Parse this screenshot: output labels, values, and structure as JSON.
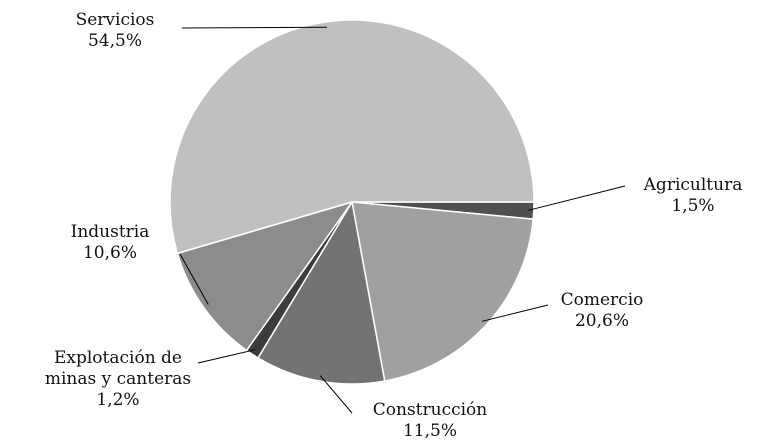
{
  "chart_data": {
    "type": "pie",
    "categories": [
      "Agricultura",
      "Comercio",
      "Construcción",
      "Explotación de minas y canteras",
      "Industria",
      "Servicios"
    ],
    "values": [
      1.5,
      20.6,
      11.5,
      1.2,
      10.6,
      54.5
    ],
    "value_labels": [
      "1,5%",
      "20,6%",
      "11,5%",
      "1,2%",
      "10,6%",
      "54,5%"
    ],
    "colors": [
      "#505050",
      "#a0a0a0",
      "#737373",
      "#3c3c3c",
      "#8c8c8c",
      "#c0c0c0"
    ]
  }
}
